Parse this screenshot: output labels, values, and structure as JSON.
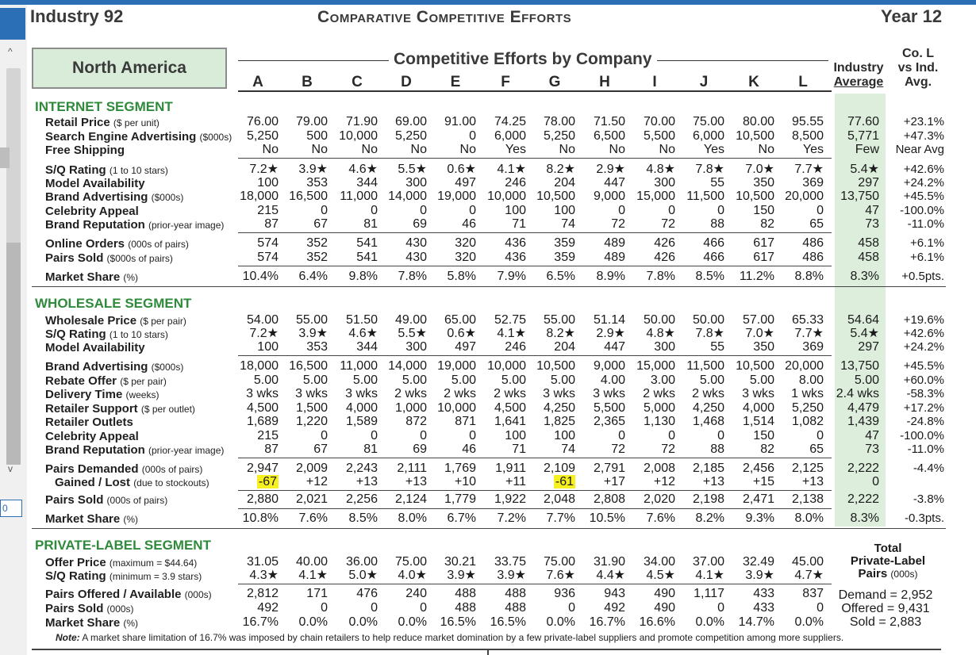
{
  "header": {
    "industry": "Industry 92",
    "title": "Comparative Competitive Efforts",
    "year": "Year 12"
  },
  "region": "North America",
  "efforts_title": "Competitive Efforts by Company",
  "companies": [
    "A",
    "B",
    "C",
    "D",
    "E",
    "F",
    "G",
    "H",
    "I",
    "J",
    "K",
    "L"
  ],
  "avg_header": [
    "Industry",
    "Average"
  ],
  "col_header": [
    "Co. L",
    "vs Ind.",
    "Avg."
  ],
  "scroll": {
    "up_arrow": "^",
    "down_arrow": "v",
    "input_value": "0"
  },
  "internet": {
    "title": "INTERNET SEGMENT",
    "rows": [
      {
        "label": "Retail Price",
        "sub": "($ per unit)",
        "vals": [
          "76.00",
          "79.00",
          "71.90",
          "69.00",
          "91.00",
          "74.25",
          "78.00",
          "71.50",
          "70.00",
          "75.00",
          "80.00",
          "95.55"
        ],
        "avg": "77.60",
        "cmp": "+23.1%"
      },
      {
        "label": "Search Engine Advertising",
        "sub": "($000s)",
        "vals": [
          "5,250",
          "500",
          "10,000",
          "5,250",
          "0",
          "6,000",
          "5,250",
          "6,500",
          "5,500",
          "6,000",
          "10,500",
          "8,500"
        ],
        "avg": "5,771",
        "cmp": "+47.3%"
      },
      {
        "label": "Free Shipping",
        "sub": "",
        "vals": [
          "No",
          "No",
          "No",
          "No",
          "No",
          "Yes",
          "No",
          "No",
          "No",
          "Yes",
          "No",
          "Yes"
        ],
        "avg": "Few",
        "cmp": "Near Avg"
      },
      {
        "label": "S/Q Rating",
        "sub": "(1 to 10 stars)",
        "vals": [
          "7.2★",
          "3.9★",
          "4.6★",
          "5.5★",
          "0.6★",
          "4.1★",
          "8.2★",
          "2.9★",
          "4.8★",
          "7.8★",
          "7.0★",
          "7.7★"
        ],
        "avg": "5.4★",
        "cmp": "+42.6%"
      },
      {
        "label": "Model Availability",
        "sub": "",
        "vals": [
          "100",
          "353",
          "344",
          "300",
          "497",
          "246",
          "204",
          "447",
          "300",
          "55",
          "350",
          "369"
        ],
        "avg": "297",
        "cmp": "+24.2%"
      },
      {
        "label": "Brand Advertising",
        "sub": "($000s)",
        "vals": [
          "18,000",
          "16,500",
          "11,000",
          "14,000",
          "19,000",
          "10,000",
          "10,500",
          "9,000",
          "15,000",
          "11,500",
          "10,500",
          "20,000"
        ],
        "avg": "13,750",
        "cmp": "+45.5%"
      },
      {
        "label": "Celebrity Appeal",
        "sub": "",
        "vals": [
          "215",
          "0",
          "0",
          "0",
          "0",
          "100",
          "100",
          "0",
          "0",
          "0",
          "150",
          "0"
        ],
        "avg": "47",
        "cmp": "-100.0%"
      },
      {
        "label": "Brand Reputation",
        "sub": "(prior-year image)",
        "vals": [
          "87",
          "67",
          "81",
          "69",
          "46",
          "71",
          "74",
          "72",
          "72",
          "88",
          "82",
          "65"
        ],
        "avg": "73",
        "cmp": "-11.0%"
      },
      {
        "label": "Online Orders",
        "sub": "(000s of pairs)",
        "vals": [
          "574",
          "352",
          "541",
          "430",
          "320",
          "436",
          "359",
          "489",
          "426",
          "466",
          "617",
          "486"
        ],
        "avg": "458",
        "cmp": "+6.1%"
      },
      {
        "label": "Pairs Sold",
        "sub": "($000s of pairs)",
        "vals": [
          "574",
          "352",
          "541",
          "430",
          "320",
          "436",
          "359",
          "489",
          "426",
          "466",
          "617",
          "486"
        ],
        "avg": "458",
        "cmp": "+6.1%"
      },
      {
        "label": "Market Share",
        "sub": "(%)",
        "vals": [
          "10.4%",
          "6.4%",
          "9.8%",
          "7.8%",
          "5.8%",
          "7.9%",
          "6.5%",
          "8.9%",
          "7.8%",
          "8.5%",
          "11.2%",
          "8.8%"
        ],
        "avg": "8.3%",
        "cmp": "+0.5pts."
      }
    ]
  },
  "wholesale": {
    "title": "WHOLESALE SEGMENT",
    "rows": [
      {
        "label": "Wholesale Price",
        "sub": "($ per pair)",
        "vals": [
          "54.00",
          "55.00",
          "51.50",
          "49.00",
          "65.00",
          "52.75",
          "55.00",
          "51.14",
          "50.00",
          "50.00",
          "57.00",
          "65.33"
        ],
        "avg": "54.64",
        "cmp": "+19.6%"
      },
      {
        "label": "S/Q Rating",
        "sub": "(1 to 10 stars)",
        "vals": [
          "7.2★",
          "3.9★",
          "4.6★",
          "5.5★",
          "0.6★",
          "4.1★",
          "8.2★",
          "2.9★",
          "4.8★",
          "7.8★",
          "7.0★",
          "7.7★"
        ],
        "avg": "5.4★",
        "cmp": "+42.6%"
      },
      {
        "label": "Model Availability",
        "sub": "",
        "vals": [
          "100",
          "353",
          "344",
          "300",
          "497",
          "246",
          "204",
          "447",
          "300",
          "55",
          "350",
          "369"
        ],
        "avg": "297",
        "cmp": "+24.2%"
      },
      {
        "label": "Brand Advertising",
        "sub": "($000s)",
        "vals": [
          "18,000",
          "16,500",
          "11,000",
          "14,000",
          "19,000",
          "10,000",
          "10,500",
          "9,000",
          "15,000",
          "11,500",
          "10,500",
          "20,000"
        ],
        "avg": "13,750",
        "cmp": "+45.5%"
      },
      {
        "label": "Rebate Offer",
        "sub": "($ per pair)",
        "vals": [
          "5.00",
          "5.00",
          "5.00",
          "5.00",
          "5.00",
          "5.00",
          "5.00",
          "4.00",
          "3.00",
          "5.00",
          "5.00",
          "8.00"
        ],
        "avg": "5.00",
        "cmp": "+60.0%"
      },
      {
        "label": "Delivery Time",
        "sub": "(weeks)",
        "vals": [
          "3 wks",
          "3 wks",
          "3 wks",
          "2 wks",
          "2 wks",
          "2 wks",
          "3 wks",
          "3 wks",
          "2 wks",
          "2 wks",
          "3 wks",
          "1 wks"
        ],
        "avg": "2.4 wks",
        "cmp": "-58.3%"
      },
      {
        "label": "Retailer Support",
        "sub": "($ per outlet)",
        "vals": [
          "4,500",
          "1,500",
          "4,000",
          "1,000",
          "10,000",
          "4,500",
          "4,250",
          "5,500",
          "5,000",
          "4,250",
          "4,000",
          "5,250"
        ],
        "avg": "4,479",
        "cmp": "+17.2%"
      },
      {
        "label": "Retailer Outlets",
        "sub": "",
        "vals": [
          "1,689",
          "1,220",
          "1,589",
          "872",
          "871",
          "1,641",
          "1,825",
          "2,365",
          "1,130",
          "1,468",
          "1,514",
          "1,082"
        ],
        "avg": "1,439",
        "cmp": "-24.8%"
      },
      {
        "label": "Celebrity Appeal",
        "sub": "",
        "vals": [
          "215",
          "0",
          "0",
          "0",
          "0",
          "100",
          "100",
          "0",
          "0",
          "0",
          "150",
          "0"
        ],
        "avg": "47",
        "cmp": "-100.0%"
      },
      {
        "label": "Brand Reputation",
        "sub": "(prior-year image)",
        "vals": [
          "87",
          "67",
          "81",
          "69",
          "46",
          "71",
          "74",
          "72",
          "72",
          "88",
          "82",
          "65"
        ],
        "avg": "73",
        "cmp": "-11.0%"
      },
      {
        "label": "Pairs Demanded",
        "sub": "(000s of pairs)",
        "vals": [
          "2,947",
          "2,009",
          "2,243",
          "2,111",
          "1,769",
          "1,911",
          "2,109",
          "2,791",
          "2,008",
          "2,185",
          "2,456",
          "2,125"
        ],
        "avg": "2,222",
        "cmp": "-4.4%"
      },
      {
        "label": "Gained / Lost",
        "sub": "(due to stockouts)",
        "vals": [
          "-67",
          "+12",
          "+13",
          "+13",
          "+10",
          "+11",
          "-61",
          "+17",
          "+12",
          "+13",
          "+15",
          "+13"
        ],
        "avg": "0",
        "cmp": ""
      },
      {
        "label": "Pairs Sold",
        "sub": "(000s of pairs)",
        "vals": [
          "2,880",
          "2,021",
          "2,256",
          "2,124",
          "1,779",
          "1,922",
          "2,048",
          "2,808",
          "2,020",
          "2,198",
          "2,471",
          "2,138"
        ],
        "avg": "2,222",
        "cmp": "-3.8%"
      },
      {
        "label": "Market Share",
        "sub": "(%)",
        "vals": [
          "10.8%",
          "7.6%",
          "8.5%",
          "8.0%",
          "6.7%",
          "7.2%",
          "7.7%",
          "10.5%",
          "7.6%",
          "8.2%",
          "9.3%",
          "8.0%"
        ],
        "avg": "8.3%",
        "cmp": "-0.3pts."
      }
    ]
  },
  "private": {
    "title": "PRIVATE-LABEL SEGMENT",
    "rows": [
      {
        "label": "Offer Price",
        "sub": "(maximum = $44.64)",
        "vals": [
          "31.05",
          "40.00",
          "36.00",
          "75.00",
          "30.21",
          "33.75",
          "75.00",
          "31.90",
          "34.00",
          "37.00",
          "32.49",
          "45.00"
        ]
      },
      {
        "label": "S/Q Rating",
        "sub": "(minimum = 3.9 stars)",
        "vals": [
          "4.3★",
          "4.1★",
          "5.0★",
          "4.0★",
          "3.9★",
          "3.9★",
          "7.6★",
          "4.4★",
          "4.5★",
          "4.1★",
          "3.9★",
          "4.7★"
        ]
      },
      {
        "label": "Pairs Offered / Available",
        "sub": "(000s)",
        "vals": [
          "2,812",
          "171",
          "476",
          "240",
          "488",
          "488",
          "936",
          "943",
          "490",
          "1,117",
          "433",
          "837"
        ]
      },
      {
        "label": "Pairs Sold",
        "sub": "(000s)",
        "vals": [
          "492",
          "0",
          "0",
          "0",
          "488",
          "488",
          "0",
          "492",
          "490",
          "0",
          "433",
          "0"
        ]
      },
      {
        "label": "Market Share",
        "sub": "(%)",
        "vals": [
          "16.7%",
          "0.0%",
          "0.0%",
          "0.0%",
          "16.5%",
          "16.5%",
          "0.0%",
          "16.7%",
          "16.6%",
          "0.0%",
          "14.7%",
          "0.0%"
        ]
      }
    ],
    "total_title": [
      "Total",
      "Private-Label",
      "Pairs"
    ],
    "total_sub": "(000s)",
    "totals": [
      "Demand = 2,952",
      "Offered = 9,431",
      "Sold = 2,883"
    ]
  },
  "note_label": "Note:",
  "note_text": " A market share limitation of 16.7% was imposed by chain retailers to help reduce market domination by a few private-label suppliers and promote competition among more suppliers."
}
